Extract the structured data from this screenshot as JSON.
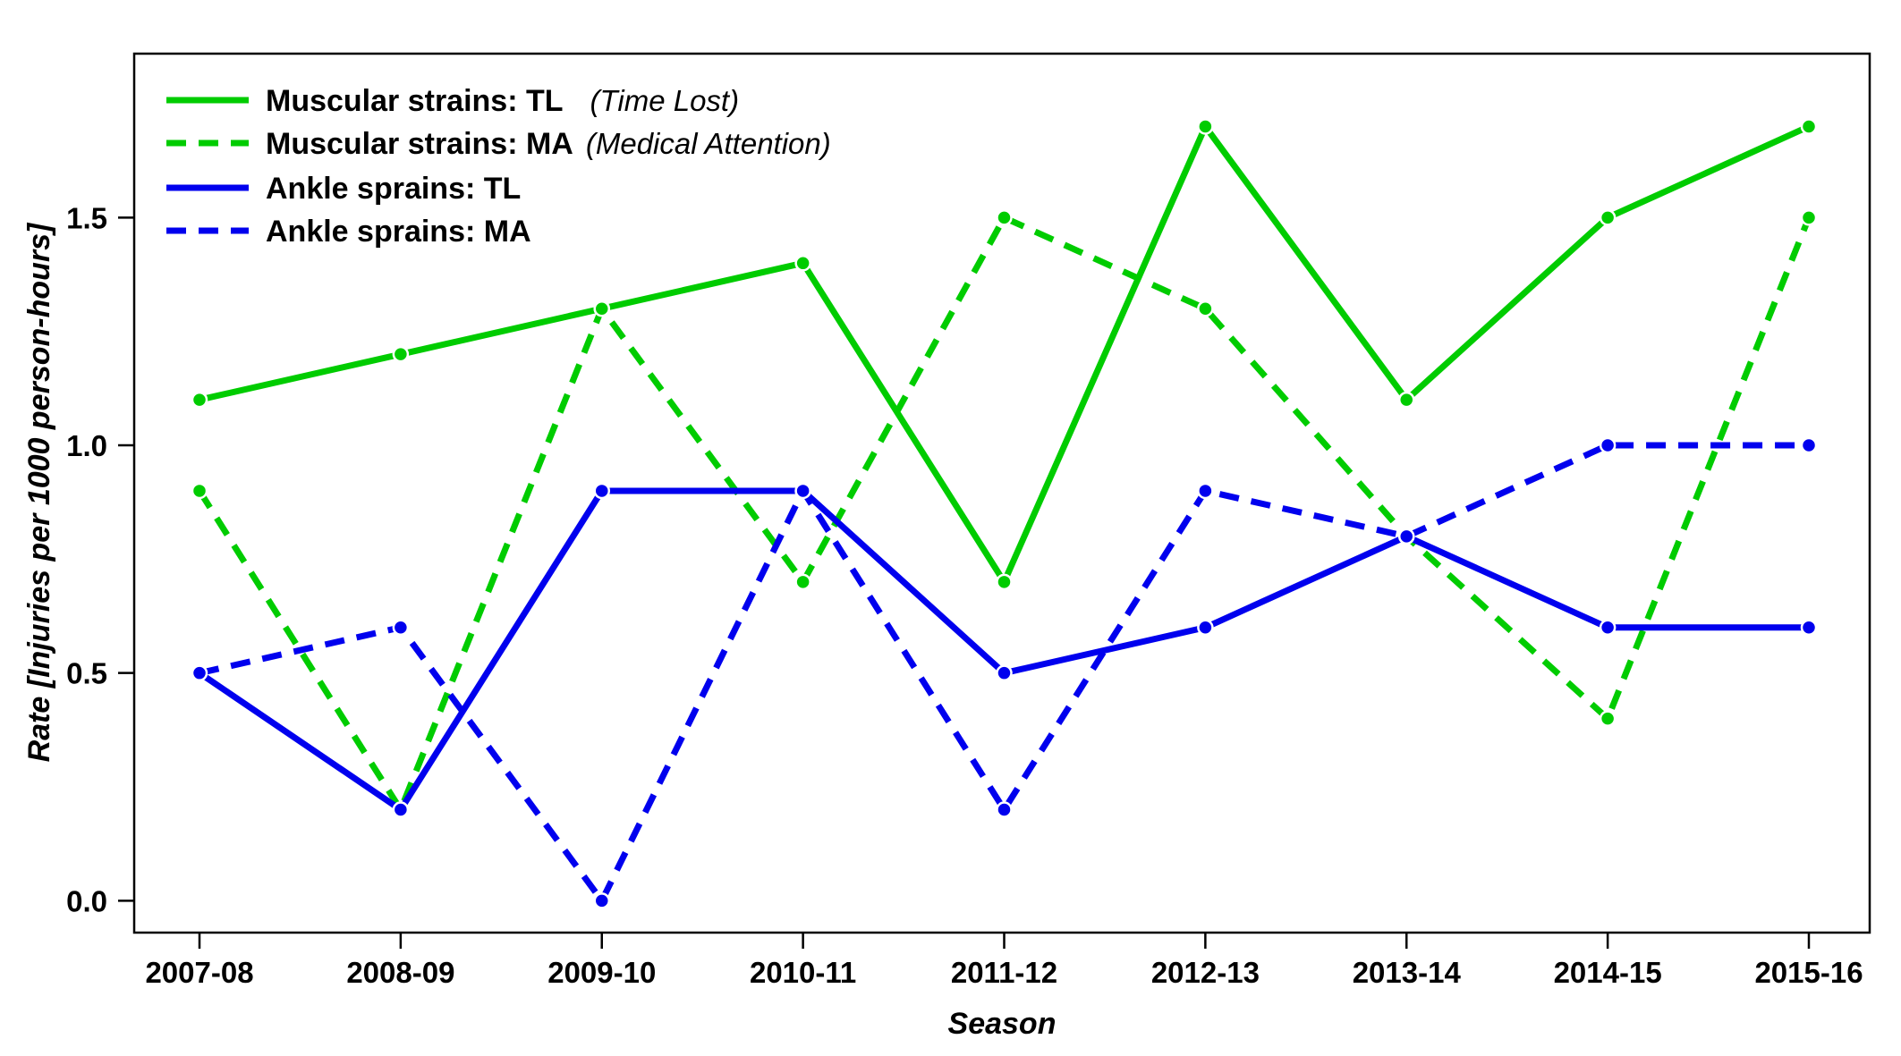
{
  "chart_data": {
    "type": "line",
    "title": "",
    "xlabel": "Season",
    "ylabel": "Rate [Injuries per 1000 person-hours]",
    "categories": [
      "2007-08",
      "2008-09",
      "2009-10",
      "2010-11",
      "2011-12",
      "2012-13",
      "2013-14",
      "2014-15",
      "2015-16"
    ],
    "ylim": [
      -0.07,
      1.86
    ],
    "yticks": [
      0.0,
      0.5,
      1.0,
      1.5
    ],
    "ytick_labels": [
      "0.0",
      "0.5",
      "1.0",
      "1.5"
    ],
    "grid": false,
    "legend_position": "top-left",
    "series": [
      {
        "name": "Muscular strains: TL",
        "note": "(Time Lost)",
        "color": "#00cc00",
        "dash": "solid",
        "values": [
          1.1,
          1.2,
          1.3,
          1.4,
          0.7,
          1.7,
          1.1,
          1.5,
          1.7
        ]
      },
      {
        "name": "Muscular strains: MA",
        "note": "(Medical Attention)",
        "color": "#00cc00",
        "dash": "dashed",
        "values": [
          0.9,
          0.2,
          1.3,
          0.7,
          1.5,
          1.3,
          0.8,
          0.4,
          1.5
        ]
      },
      {
        "name": "Ankle sprains: TL",
        "note": "",
        "color": "#0000ee",
        "dash": "solid",
        "values": [
          0.5,
          0.2,
          0.9,
          0.9,
          0.5,
          0.6,
          0.8,
          0.6,
          0.6
        ]
      },
      {
        "name": "Ankle sprains: MA",
        "note": "",
        "color": "#0000ee",
        "dash": "dashed",
        "values": [
          0.5,
          0.6,
          0.0,
          0.9,
          0.2,
          0.9,
          0.8,
          1.0,
          1.0
        ]
      }
    ]
  }
}
